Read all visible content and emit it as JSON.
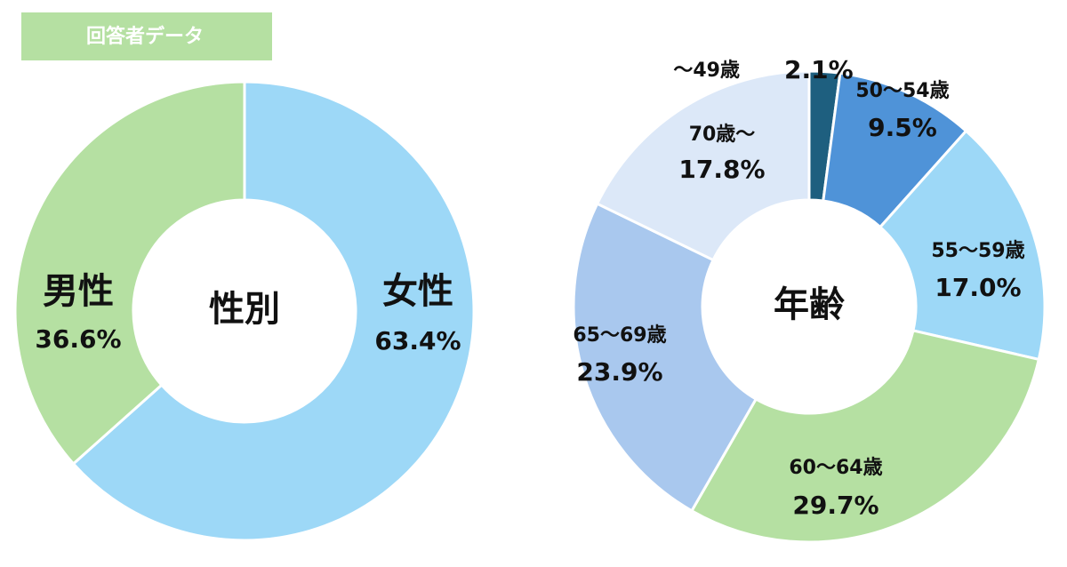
{
  "header": {
    "label": "回答者データ"
  },
  "chart_data": [
    {
      "type": "pie",
      "center_label": "性別",
      "categories": [
        "女性",
        "男性"
      ],
      "values": [
        63.4,
        36.6
      ],
      "value_labels": [
        "63.4%",
        "36.6%"
      ],
      "colors": [
        "#9dd8f7",
        "#b5e0a2"
      ]
    },
    {
      "type": "pie",
      "center_label": "年齢",
      "categories": [
        "～49歳",
        "50～54歳",
        "55～59歳",
        "60～64歳",
        "65～69歳",
        "70歳～"
      ],
      "values": [
        2.1,
        9.5,
        17.0,
        29.7,
        23.9,
        17.8
      ],
      "value_labels": [
        "2.1%",
        "9.5%",
        "17.0%",
        "29.7%",
        "23.9%",
        "17.8%"
      ],
      "colors": [
        "#1e5f7f",
        "#4f93d8",
        "#9dd8f7",
        "#b5e0a2",
        "#a9c8ee",
        "#dce8f8"
      ]
    }
  ]
}
